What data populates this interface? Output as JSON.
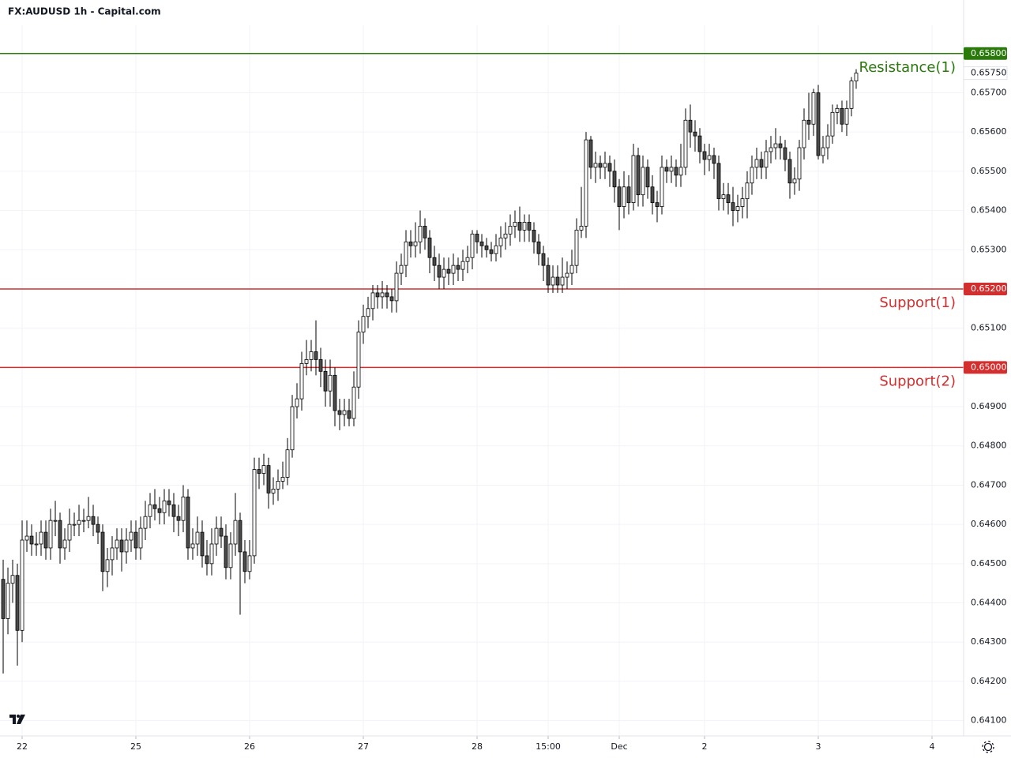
{
  "chart_data": {
    "type": "candlestick",
    "title": "FX:AUDUSD 1h - Capital.com",
    "up_color": "#ffffff",
    "down_color": "#4a4a4a",
    "outline_color": "#000000",
    "grid": true,
    "xlim": [
      -0.67,
      202.67
    ],
    "ylim": [
      0.64061,
      0.65872
    ],
    "xticks": [
      {
        "value": 4,
        "label": "22"
      },
      {
        "value": 28,
        "label": "25"
      },
      {
        "value": 52,
        "label": "26"
      },
      {
        "value": 76,
        "label": "27"
      },
      {
        "value": 100,
        "label": "28"
      },
      {
        "value": 115,
        "label": "15:00"
      },
      {
        "value": 130,
        "label": "Dec"
      },
      {
        "value": 148,
        "label": "2"
      },
      {
        "value": 172,
        "label": "3"
      },
      {
        "value": 196,
        "label": "4"
      }
    ],
    "yticks": [
      {
        "value": 0.641,
        "label": "0.64100"
      },
      {
        "value": 0.642,
        "label": "0.64200"
      },
      {
        "value": 0.643,
        "label": "0.64300"
      },
      {
        "value": 0.644,
        "label": "0.64400"
      },
      {
        "value": 0.645,
        "label": "0.64500"
      },
      {
        "value": 0.646,
        "label": "0.64600"
      },
      {
        "value": 0.647,
        "label": "0.64700"
      },
      {
        "value": 0.648,
        "label": "0.64800"
      },
      {
        "value": 0.649,
        "label": "0.64900"
      },
      {
        "value": 0.65,
        "label": "0.65000"
      },
      {
        "value": 0.651,
        "label": "0.65100"
      },
      {
        "value": 0.652,
        "label": "0.65200"
      },
      {
        "value": 0.653,
        "label": "0.65300"
      },
      {
        "value": 0.654,
        "label": "0.65400"
      },
      {
        "value": 0.655,
        "label": "0.65500"
      },
      {
        "value": 0.656,
        "label": "0.65600"
      },
      {
        "value": 0.657,
        "label": "0.65700"
      }
    ],
    "levels": [
      {
        "name": "Resistance(1)",
        "value": 0.658,
        "label": "0.65800",
        "color": "#2a7a0b"
      },
      {
        "name": "Support(1)",
        "value": 0.652,
        "label": "0.65200",
        "color": "#d32f2f"
      },
      {
        "name": "Support(2)",
        "value": 0.65,
        "label": "0.65000",
        "color": "#d32f2f"
      }
    ],
    "last_price": {
      "value": 0.6575,
      "label": "0.65750"
    },
    "open": [
      0.6446,
      0.6436,
      0.6445,
      0.6447,
      0.6433,
      0.6456,
      0.6457,
      0.6455,
      0.6455,
      0.6458,
      0.6454,
      0.6461,
      0.6461,
      0.6454,
      0.6456,
      0.646,
      0.646,
      0.6461,
      0.6461,
      0.6462,
      0.646,
      0.6458,
      0.6448,
      0.6451,
      0.6454,
      0.6456,
      0.6453,
      0.6456,
      0.6458,
      0.6454,
      0.6459,
      0.6462,
      0.6465,
      0.6464,
      0.6463,
      0.6466,
      0.6465,
      0.6462,
      0.6461,
      0.6467,
      0.6454,
      0.6455,
      0.6458,
      0.6452,
      0.645,
      0.6455,
      0.6459,
      0.6457,
      0.6449,
      0.6455,
      0.6461,
      0.6453,
      0.6448,
      0.6452,
      0.6474,
      0.6473,
      0.6475,
      0.6468,
      0.6469,
      0.6471,
      0.6472,
      0.6479,
      0.649,
      0.6492,
      0.6501,
      0.6502,
      0.6504,
      0.6502,
      0.6499,
      0.6494,
      0.6498,
      0.6489,
      0.6488,
      0.6489,
      0.6487,
      0.6495,
      0.6509,
      0.6513,
      0.6515,
      0.6519,
      0.6518,
      0.6519,
      0.6518,
      0.6517,
      0.6524,
      0.6526,
      0.6532,
      0.6531,
      0.6532,
      0.6536,
      0.6533,
      0.6528,
      0.6526,
      0.6523,
      0.6525,
      0.6524,
      0.6526,
      0.6525,
      0.6527,
      0.6528,
      0.6534,
      0.6532,
      0.6531,
      0.653,
      0.6529,
      0.6531,
      0.6533,
      0.6534,
      0.6536,
      0.6537,
      0.6535,
      0.6537,
      0.6535,
      0.6532,
      0.6529,
      0.6526,
      0.6521,
      0.6523,
      0.6521,
      0.6523,
      0.6524,
      0.6526,
      0.6535,
      0.6536,
      0.6558,
      0.6551,
      0.6552,
      0.6551,
      0.6552,
      0.655,
      0.6546,
      0.6541,
      0.6546,
      0.6542,
      0.6554,
      0.6544,
      0.6551,
      0.6546,
      0.6542,
      0.6541,
      0.6551,
      0.655,
      0.6551,
      0.6549,
      0.6551,
      0.6563,
      0.656,
      0.6559,
      0.6555,
      0.6553,
      0.6554,
      0.6552,
      0.6543,
      0.6544,
      0.6542,
      0.654,
      0.6541,
      0.6543,
      0.6547,
      0.6551,
      0.6553,
      0.6551,
      0.6555,
      0.6556,
      0.6557,
      0.6556,
      0.6553,
      0.6547,
      0.6548,
      0.6556,
      0.6563,
      0.6562,
      0.657,
      0.6554,
      0.6556,
      0.6559,
      0.6565,
      0.6566,
      0.6562,
      0.6566,
      0.6573
    ],
    "high": [
      0.6451,
      0.6449,
      0.6451,
      0.645,
      0.6461,
      0.6461,
      0.646,
      0.6458,
      0.6461,
      0.6461,
      0.6464,
      0.6466,
      0.6463,
      0.6459,
      0.6464,
      0.6463,
      0.6465,
      0.6464,
      0.6467,
      0.6465,
      0.6462,
      0.646,
      0.6454,
      0.6457,
      0.6459,
      0.6459,
      0.6459,
      0.6461,
      0.6461,
      0.6462,
      0.6466,
      0.6468,
      0.6469,
      0.6467,
      0.6469,
      0.6469,
      0.6468,
      0.6465,
      0.647,
      0.6469,
      0.6459,
      0.6462,
      0.6461,
      0.6456,
      0.6459,
      0.6462,
      0.6462,
      0.646,
      0.6458,
      0.6468,
      0.6463,
      0.6456,
      0.6456,
      0.6477,
      0.6477,
      0.6478,
      0.6477,
      0.6472,
      0.6474,
      0.6476,
      0.6482,
      0.6493,
      0.6496,
      0.6504,
      0.6507,
      0.6507,
      0.6512,
      0.6505,
      0.6502,
      0.6502,
      0.65,
      0.6492,
      0.6492,
      0.6492,
      0.6499,
      0.6512,
      0.6516,
      0.6518,
      0.6521,
      0.6521,
      0.6522,
      0.6521,
      0.652,
      0.6527,
      0.6529,
      0.6535,
      0.6535,
      0.6537,
      0.654,
      0.6538,
      0.6535,
      0.6531,
      0.6529,
      0.6528,
      0.6528,
      0.6529,
      0.6528,
      0.653,
      0.6531,
      0.6535,
      0.6535,
      0.6534,
      0.6533,
      0.6532,
      0.6534,
      0.6536,
      0.6537,
      0.6539,
      0.654,
      0.6541,
      0.6539,
      0.6539,
      0.6537,
      0.6534,
      0.6531,
      0.6528,
      0.6526,
      0.6526,
      0.6528,
      0.6527,
      0.653,
      0.6538,
      0.6546,
      0.656,
      0.6559,
      0.6555,
      0.6554,
      0.6555,
      0.6554,
      0.6553,
      0.6548,
      0.655,
      0.6549,
      0.6557,
      0.6556,
      0.6554,
      0.6553,
      0.6549,
      0.6545,
      0.6554,
      0.6553,
      0.6554,
      0.6553,
      0.6557,
      0.6566,
      0.6567,
      0.6563,
      0.6561,
      0.6557,
      0.6557,
      0.6556,
      0.6554,
      0.6547,
      0.6547,
      0.6546,
      0.6544,
      0.6546,
      0.655,
      0.6554,
      0.6556,
      0.6555,
      0.6558,
      0.6559,
      0.6561,
      0.6559,
      0.6558,
      0.6555,
      0.6551,
      0.6558,
      0.6566,
      0.657,
      0.6571,
      0.6572,
      0.6559,
      0.6562,
      0.6567,
      0.6567,
      0.6568,
      0.6568,
      0.6574,
      0.6576
    ],
    "low": [
      0.6422,
      0.6432,
      0.644,
      0.6424,
      0.643,
      0.6453,
      0.6452,
      0.6452,
      0.6452,
      0.6451,
      0.6451,
      0.6457,
      0.645,
      0.6451,
      0.6453,
      0.6457,
      0.6457,
      0.6458,
      0.6459,
      0.6457,
      0.6455,
      0.6443,
      0.6444,
      0.6447,
      0.6451,
      0.6448,
      0.645,
      0.6453,
      0.6451,
      0.6451,
      0.6456,
      0.6459,
      0.6461,
      0.646,
      0.646,
      0.6462,
      0.6458,
      0.6457,
      0.6458,
      0.6451,
      0.6451,
      0.6452,
      0.6449,
      0.6447,
      0.6447,
      0.6452,
      0.6454,
      0.6446,
      0.6446,
      0.6452,
      0.6437,
      0.6445,
      0.6446,
      0.645,
      0.6469,
      0.647,
      0.6464,
      0.6465,
      0.6466,
      0.6469,
      0.647,
      0.6477,
      0.6487,
      0.6489,
      0.6498,
      0.6499,
      0.6498,
      0.6495,
      0.649,
      0.649,
      0.6485,
      0.6484,
      0.6485,
      0.6485,
      0.6485,
      0.6492,
      0.6506,
      0.651,
      0.6512,
      0.6515,
      0.6515,
      0.6515,
      0.6514,
      0.6514,
      0.6521,
      0.6523,
      0.6528,
      0.6528,
      0.6529,
      0.653,
      0.6524,
      0.6522,
      0.652,
      0.652,
      0.6521,
      0.6521,
      0.6522,
      0.6522,
      0.6524,
      0.6525,
      0.6529,
      0.6528,
      0.6528,
      0.6527,
      0.6527,
      0.6528,
      0.653,
      0.6531,
      0.6533,
      0.6532,
      0.6532,
      0.6532,
      0.6529,
      0.6526,
      0.6522,
      0.6519,
      0.6519,
      0.6519,
      0.6519,
      0.652,
      0.6521,
      0.6524,
      0.6533,
      0.6533,
      0.6548,
      0.6547,
      0.6548,
      0.6548,
      0.6546,
      0.6542,
      0.6535,
      0.6538,
      0.6539,
      0.654,
      0.6541,
      0.6541,
      0.6543,
      0.6539,
      0.6537,
      0.6539,
      0.6547,
      0.6547,
      0.6546,
      0.6546,
      0.6549,
      0.6556,
      0.6555,
      0.6552,
      0.6549,
      0.655,
      0.6548,
      0.654,
      0.654,
      0.6539,
      0.6536,
      0.6537,
      0.6538,
      0.6538,
      0.6544,
      0.6548,
      0.6548,
      0.6548,
      0.6552,
      0.6553,
      0.6553,
      0.655,
      0.6543,
      0.6544,
      0.6545,
      0.6553,
      0.6558,
      0.6559,
      0.6553,
      0.6552,
      0.6553,
      0.6557,
      0.6562,
      0.656,
      0.6559,
      0.6564,
      0.6571
    ],
    "close": [
      0.6436,
      0.6445,
      0.6447,
      0.6433,
      0.6456,
      0.6457,
      0.6455,
      0.6455,
      0.6458,
      0.6454,
      0.6461,
      0.6461,
      0.6454,
      0.6456,
      0.646,
      0.646,
      0.6461,
      0.6461,
      0.6462,
      0.646,
      0.6458,
      0.6448,
      0.6451,
      0.6454,
      0.6456,
      0.6453,
      0.6456,
      0.6458,
      0.6454,
      0.6459,
      0.6462,
      0.6465,
      0.6464,
      0.6463,
      0.6466,
      0.6465,
      0.6462,
      0.6461,
      0.6467,
      0.6454,
      0.6455,
      0.6458,
      0.6452,
      0.645,
      0.6455,
      0.6459,
      0.6457,
      0.6449,
      0.6455,
      0.6461,
      0.6453,
      0.6448,
      0.6452,
      0.6474,
      0.6473,
      0.6475,
      0.6468,
      0.6469,
      0.6471,
      0.6472,
      0.6479,
      0.649,
      0.6492,
      0.6501,
      0.6502,
      0.6504,
      0.6502,
      0.6499,
      0.6494,
      0.6498,
      0.6489,
      0.6488,
      0.6489,
      0.6487,
      0.6495,
      0.6509,
      0.6513,
      0.6515,
      0.6519,
      0.6518,
      0.6519,
      0.6518,
      0.6517,
      0.6524,
      0.6526,
      0.6532,
      0.6531,
      0.6532,
      0.6536,
      0.6533,
      0.6528,
      0.6526,
      0.6523,
      0.6525,
      0.6524,
      0.6526,
      0.6525,
      0.6527,
      0.6528,
      0.6534,
      0.6532,
      0.6531,
      0.653,
      0.6529,
      0.6531,
      0.6533,
      0.6534,
      0.6536,
      0.6537,
      0.6535,
      0.6537,
      0.6535,
      0.6532,
      0.6529,
      0.6526,
      0.6521,
      0.6523,
      0.6521,
      0.6523,
      0.6524,
      0.6526,
      0.6535,
      0.6536,
      0.6558,
      0.6551,
      0.6552,
      0.6551,
      0.6552,
      0.655,
      0.6546,
      0.6541,
      0.6546,
      0.6542,
      0.6554,
      0.6544,
      0.6551,
      0.6546,
      0.6542,
      0.6541,
      0.6551,
      0.655,
      0.6551,
      0.6549,
      0.6551,
      0.6563,
      0.656,
      0.6559,
      0.6555,
      0.6553,
      0.6554,
      0.6552,
      0.6543,
      0.6544,
      0.6542,
      0.654,
      0.6541,
      0.6543,
      0.6547,
      0.6551,
      0.6553,
      0.6551,
      0.6555,
      0.6556,
      0.6557,
      0.6556,
      0.6553,
      0.6547,
      0.6548,
      0.6556,
      0.6563,
      0.6562,
      0.657,
      0.6554,
      0.6556,
      0.6559,
      0.6565,
      0.6566,
      0.6562,
      0.6566,
      0.6573,
      0.6575
    ]
  }
}
